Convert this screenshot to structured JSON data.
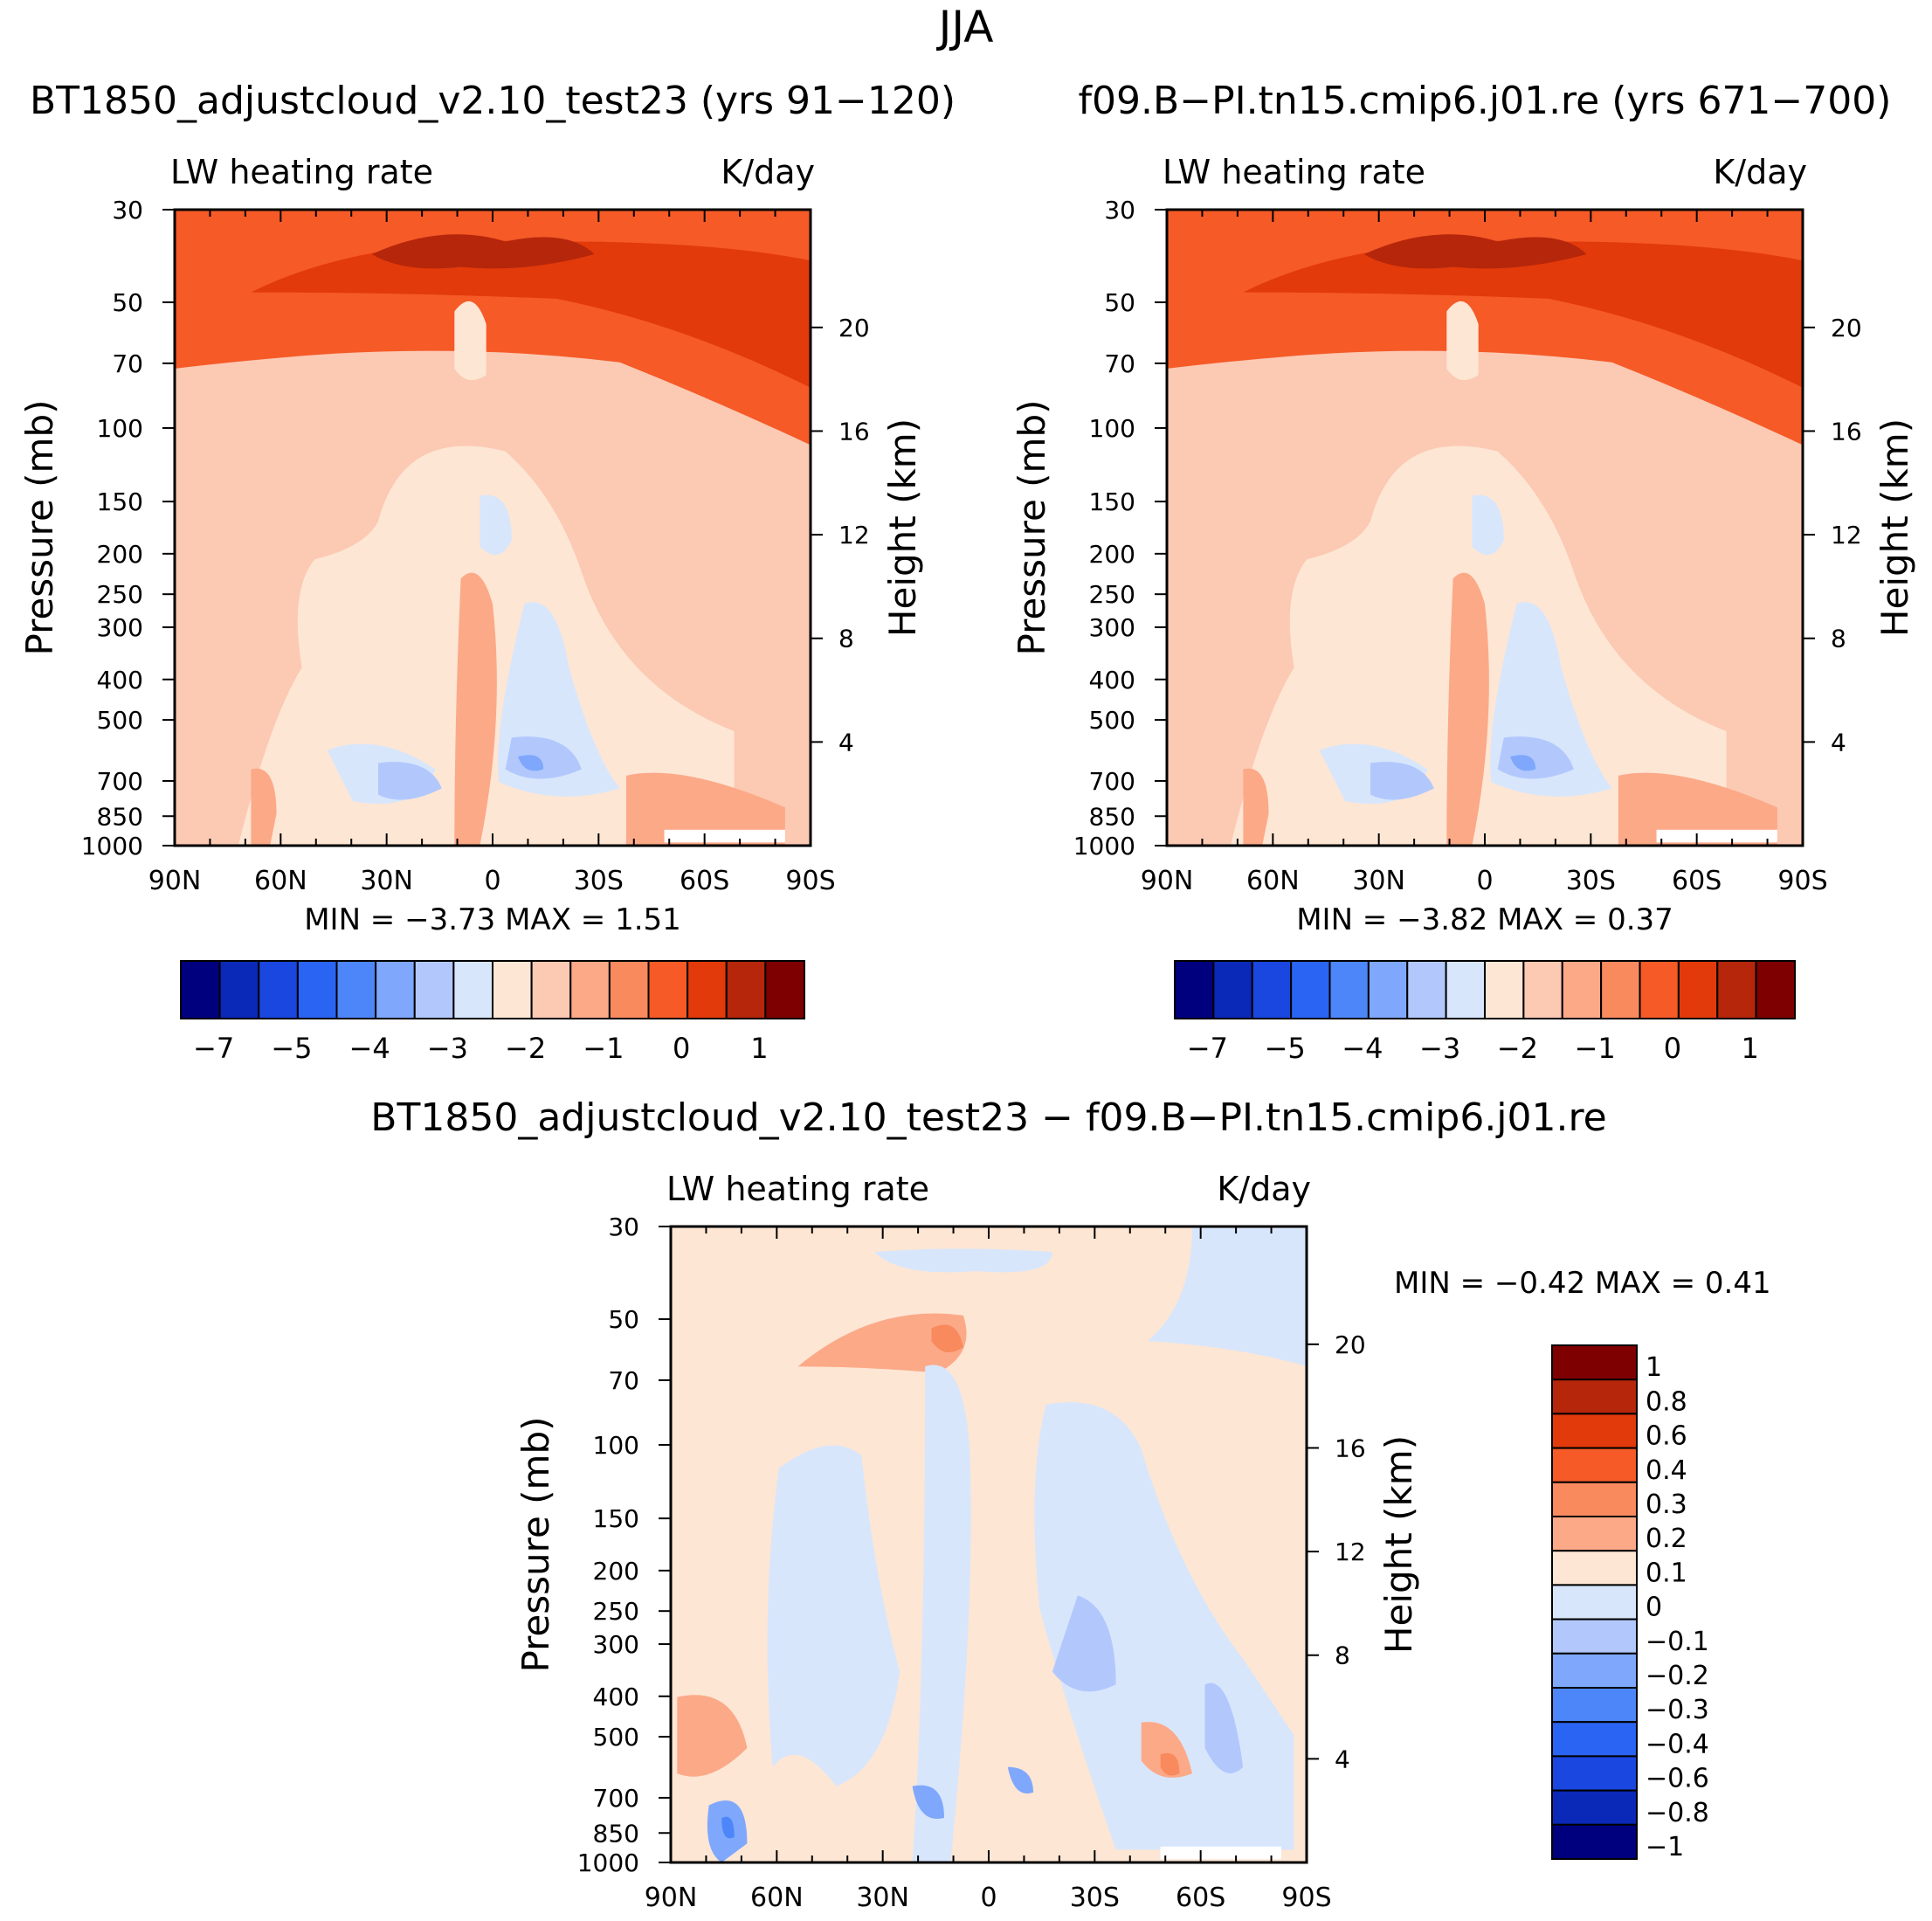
{
  "figure": {
    "title": "JJA"
  },
  "chart_data": [
    {
      "type": "heatmap",
      "title": "BT1850_adjustcloud_v2.10_test23 (yrs 91-120)",
      "subtitle_left": "LW heating rate",
      "subtitle_right": "K/day",
      "ylabel": "Pressure (mb)",
      "ylabel_right": "Height (km)",
      "x_ticks": [
        "90N",
        "60N",
        "30N",
        "0",
        "30S",
        "60S",
        "90S"
      ],
      "y_ticks": [
        "30",
        "50",
        "70",
        "100",
        "150",
        "200",
        "250",
        "300",
        "400",
        "500",
        "700",
        "850",
        "1000"
      ],
      "y_ticks_right": [
        "20",
        "16",
        "12",
        "8",
        "4"
      ],
      "ylim": [
        1000,
        30
      ],
      "stats_text": "MIN =   -3.73   MAX =    1.51",
      "min": -3.73,
      "max": 1.51,
      "colorbar_labels": [
        "-7",
        "-5",
        "-4",
        "-3",
        "-2",
        "-1",
        "0",
        "1"
      ],
      "palette": [
        "#00007f",
        "#0a29b8",
        "#1a47e0",
        "#2a64f3",
        "#4d86f8",
        "#7fa8fc",
        "#b2c8fd",
        "#d8e6fc",
        "#fde6d4",
        "#fcc9b3",
        "#fca988",
        "#f98a5e",
        "#f55a27",
        "#e23a0b",
        "#b5260b",
        "#7f0000"
      ]
    },
    {
      "type": "heatmap",
      "title": "f09.B-PI.tn15.cmip6.j01.re (yrs 671-700)",
      "subtitle_left": "LW heating rate",
      "subtitle_right": "K/day",
      "ylabel": "Pressure (mb)",
      "ylabel_right": "Height (km)",
      "x_ticks": [
        "90N",
        "60N",
        "30N",
        "0",
        "30S",
        "60S",
        "90S"
      ],
      "y_ticks": [
        "30",
        "50",
        "70",
        "100",
        "150",
        "200",
        "250",
        "300",
        "400",
        "500",
        "700",
        "850",
        "1000"
      ],
      "y_ticks_right": [
        "20",
        "16",
        "12",
        "8",
        "4"
      ],
      "ylim": [
        1000,
        30
      ],
      "stats_text": "MIN =   -3.82   MAX =    0.37",
      "min": -3.82,
      "max": 0.37,
      "colorbar_labels": [
        "-7",
        "-5",
        "-4",
        "-3",
        "-2",
        "-1",
        "0",
        "1"
      ],
      "palette": [
        "#00007f",
        "#0a29b8",
        "#1a47e0",
        "#2a64f3",
        "#4d86f8",
        "#7fa8fc",
        "#b2c8fd",
        "#d8e6fc",
        "#fde6d4",
        "#fcc9b3",
        "#fca988",
        "#f98a5e",
        "#f55a27",
        "#e23a0b",
        "#b5260b",
        "#7f0000"
      ]
    },
    {
      "type": "heatmap",
      "title": "BT1850_adjustcloud_v2.10_test23 - f09.B-PI.tn15.cmip6.j01.re",
      "subtitle_left": "LW heating rate",
      "subtitle_right": "K/day",
      "ylabel": "Pressure (mb)",
      "ylabel_right": "Height (km)",
      "x_ticks": [
        "90N",
        "60N",
        "30N",
        "0",
        "30S",
        "60S",
        "90S"
      ],
      "y_ticks": [
        "30",
        "50",
        "70",
        "100",
        "150",
        "200",
        "250",
        "300",
        "400",
        "500",
        "700",
        "850",
        "1000"
      ],
      "y_ticks_right": [
        "20",
        "16",
        "12",
        "8",
        "4"
      ],
      "ylim": [
        1000,
        30
      ],
      "stats_text": "MIN =   -0.42   MAX =    0.41",
      "min": -0.42,
      "max": 0.41,
      "colorbar_labels": [
        "1",
        "0.8",
        "0.6",
        "0.4",
        "0.3",
        "0.2",
        "0.1",
        "0",
        "-0.1",
        "-0.2",
        "-0.3",
        "-0.4",
        "-0.6",
        "-0.8",
        "-1"
      ],
      "palette": [
        "#7f0000",
        "#b5260b",
        "#e23a0b",
        "#f55a27",
        "#f98a5e",
        "#fca988",
        "#fde6d4",
        "#d8e6fc",
        "#b2c8fd",
        "#7fa8fc",
        "#4d86f8",
        "#2a64f3",
        "#1a47e0",
        "#0a29b8",
        "#00007f"
      ]
    }
  ]
}
